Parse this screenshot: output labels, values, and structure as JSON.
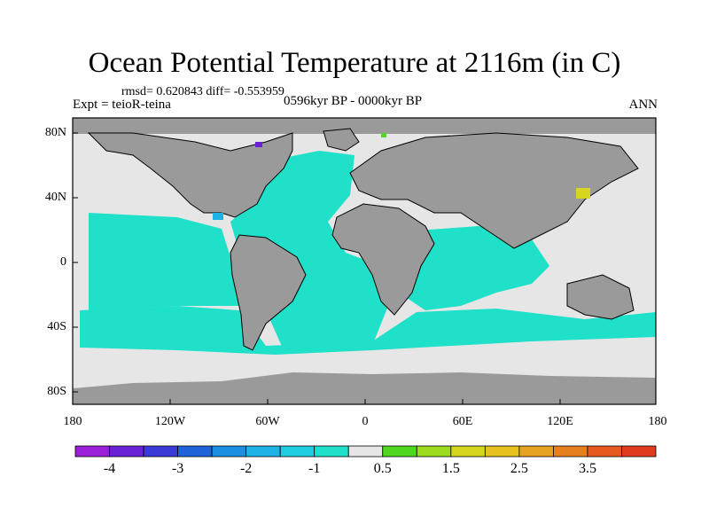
{
  "title": "Ocean Potential Temperature at 2116m (in C)",
  "stats": "rmsd= 0.620843 diff= -0.553959",
  "experiment": "Expt = teioR-teina",
  "period": "0596kyr BP - 0000kyr BP",
  "season": "ANN",
  "lat_ticks": [
    "80N",
    "40N",
    "0",
    "40S",
    "80S"
  ],
  "lon_ticks": [
    "180",
    "120W",
    "60W",
    "0",
    "60E",
    "120E",
    "180"
  ],
  "colorbar": {
    "colors": [
      "#9b1fd6",
      "#6a22d6",
      "#3a3ad9",
      "#1f63d9",
      "#1b8fe0",
      "#1fb2e6",
      "#1fcde0",
      "#1fe0c8",
      "#e6e6e6",
      "#4fd61f",
      "#9bdc1f",
      "#d6d61f",
      "#e6c21f",
      "#e6a31f",
      "#e6801f",
      "#e65a1f",
      "#e03a1f"
    ],
    "labels": [
      "-4",
      "-3",
      "-2",
      "-1",
      "0.5",
      "1.5",
      "2.5",
      "3.5"
    ]
  },
  "map_colors": {
    "land": "#9a9a9a",
    "ocean_main": "#1fe0c8",
    "ocean_neutral": "#e6e6e6",
    "ocean_deep_blue": "#1fb2e6",
    "coast": "#000000"
  }
}
